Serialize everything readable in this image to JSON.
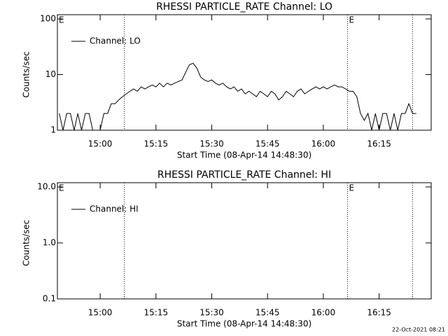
{
  "chart_data": [
    {
      "type": "line",
      "title": "RHESSI PARTICLE_RATE Channel: LO",
      "xlabel": "Start Time (08-Apr-14 14:48:30)",
      "ylabel": "Counts/sec",
      "log_y": true,
      "ylim": [
        1,
        100
      ],
      "yticks": [
        1,
        10,
        100
      ],
      "xlim": [
        888.5,
        989
      ],
      "xticks": [
        {
          "value": 900,
          "label": "15:00"
        },
        {
          "value": 915,
          "label": "15:15"
        },
        {
          "value": 930,
          "label": "15:30"
        },
        {
          "value": 945,
          "label": "15:45"
        },
        {
          "value": 960,
          "label": "16:00"
        },
        {
          "value": 975,
          "label": "16:15"
        }
      ],
      "vlines": [
        906.5,
        966.5,
        984
      ],
      "annotations": [
        {
          "text": "E",
          "x": 888.5
        },
        {
          "text": "E",
          "x": 966.5
        }
      ],
      "legend": "upper left",
      "x": [
        889,
        890,
        891,
        892,
        893,
        894,
        895,
        896,
        897,
        898,
        899,
        900,
        901,
        902,
        903,
        904,
        905,
        906,
        907,
        908,
        909,
        910,
        911,
        912,
        913,
        914,
        915,
        916,
        917,
        918,
        919,
        920,
        921,
        922,
        923,
        924,
        925,
        926,
        927,
        928,
        929,
        930,
        931,
        932,
        933,
        934,
        935,
        936,
        937,
        938,
        939,
        940,
        941,
        942,
        943,
        944,
        945,
        946,
        947,
        948,
        949,
        950,
        951,
        952,
        953,
        954,
        955,
        956,
        957,
        958,
        959,
        960,
        961,
        962,
        963,
        964,
        965,
        966,
        967,
        968,
        969,
        970,
        971,
        972,
        973,
        974,
        975,
        976,
        977,
        978,
        979,
        980,
        981,
        982,
        983,
        984,
        985
      ],
      "series": [
        {
          "name": "Channel: LO",
          "color": "#000000",
          "values": [
            2,
            1,
            2,
            2,
            1,
            2,
            1,
            2,
            2,
            1,
            1,
            1,
            2,
            2,
            3,
            3,
            3.5,
            4,
            4.5,
            5,
            5.5,
            5,
            6,
            5.5,
            6,
            6.5,
            6,
            7,
            6,
            7,
            6.5,
            7,
            7.5,
            8,
            11,
            15,
            16,
            13,
            9,
            8,
            7.5,
            8,
            7,
            6.5,
            7,
            6,
            5.5,
            6,
            5,
            5.5,
            4.5,
            5,
            4.5,
            4,
            5,
            4.5,
            4,
            5,
            4.5,
            3.5,
            4,
            5,
            4.5,
            4,
            5,
            5.5,
            4.5,
            5,
            5.5,
            6,
            5.5,
            6,
            5.5,
            6,
            6.5,
            6,
            6,
            5.5,
            5,
            5,
            4,
            2,
            1.5,
            2,
            1,
            2,
            1,
            2,
            2,
            1,
            2,
            1,
            2,
            2,
            3,
            2,
            2
          ]
        }
      ]
    },
    {
      "type": "line",
      "title": "RHESSI PARTICLE_RATE Channel: HI",
      "xlabel": "Start Time (08-Apr-14 14:48:30)",
      "ylabel": "Counts/sec",
      "log_y": true,
      "ylim": [
        0.1,
        10
      ],
      "yticks": [
        0.1,
        {
          "value": 1,
          "label": "1.0"
        },
        {
          "value": 10,
          "label": "10.0"
        }
      ],
      "xlim": [
        888.5,
        989
      ],
      "xticks": [
        {
          "value": 900,
          "label": "15:00"
        },
        {
          "value": 915,
          "label": "15:15"
        },
        {
          "value": 930,
          "label": "15:30"
        },
        {
          "value": 945,
          "label": "15:45"
        },
        {
          "value": 960,
          "label": "16:00"
        },
        {
          "value": 975,
          "label": "16:15"
        }
      ],
      "vlines": [
        906.5,
        966.5,
        984
      ],
      "annotations": [
        {
          "text": "E",
          "x": 888.5
        },
        {
          "text": "E",
          "x": 966.5
        }
      ],
      "legend": "upper left",
      "x": [],
      "series": [
        {
          "name": "Channel: HI",
          "color": "#000000",
          "values": []
        }
      ]
    }
  ],
  "footer": "22-Oct-2021 08:21"
}
